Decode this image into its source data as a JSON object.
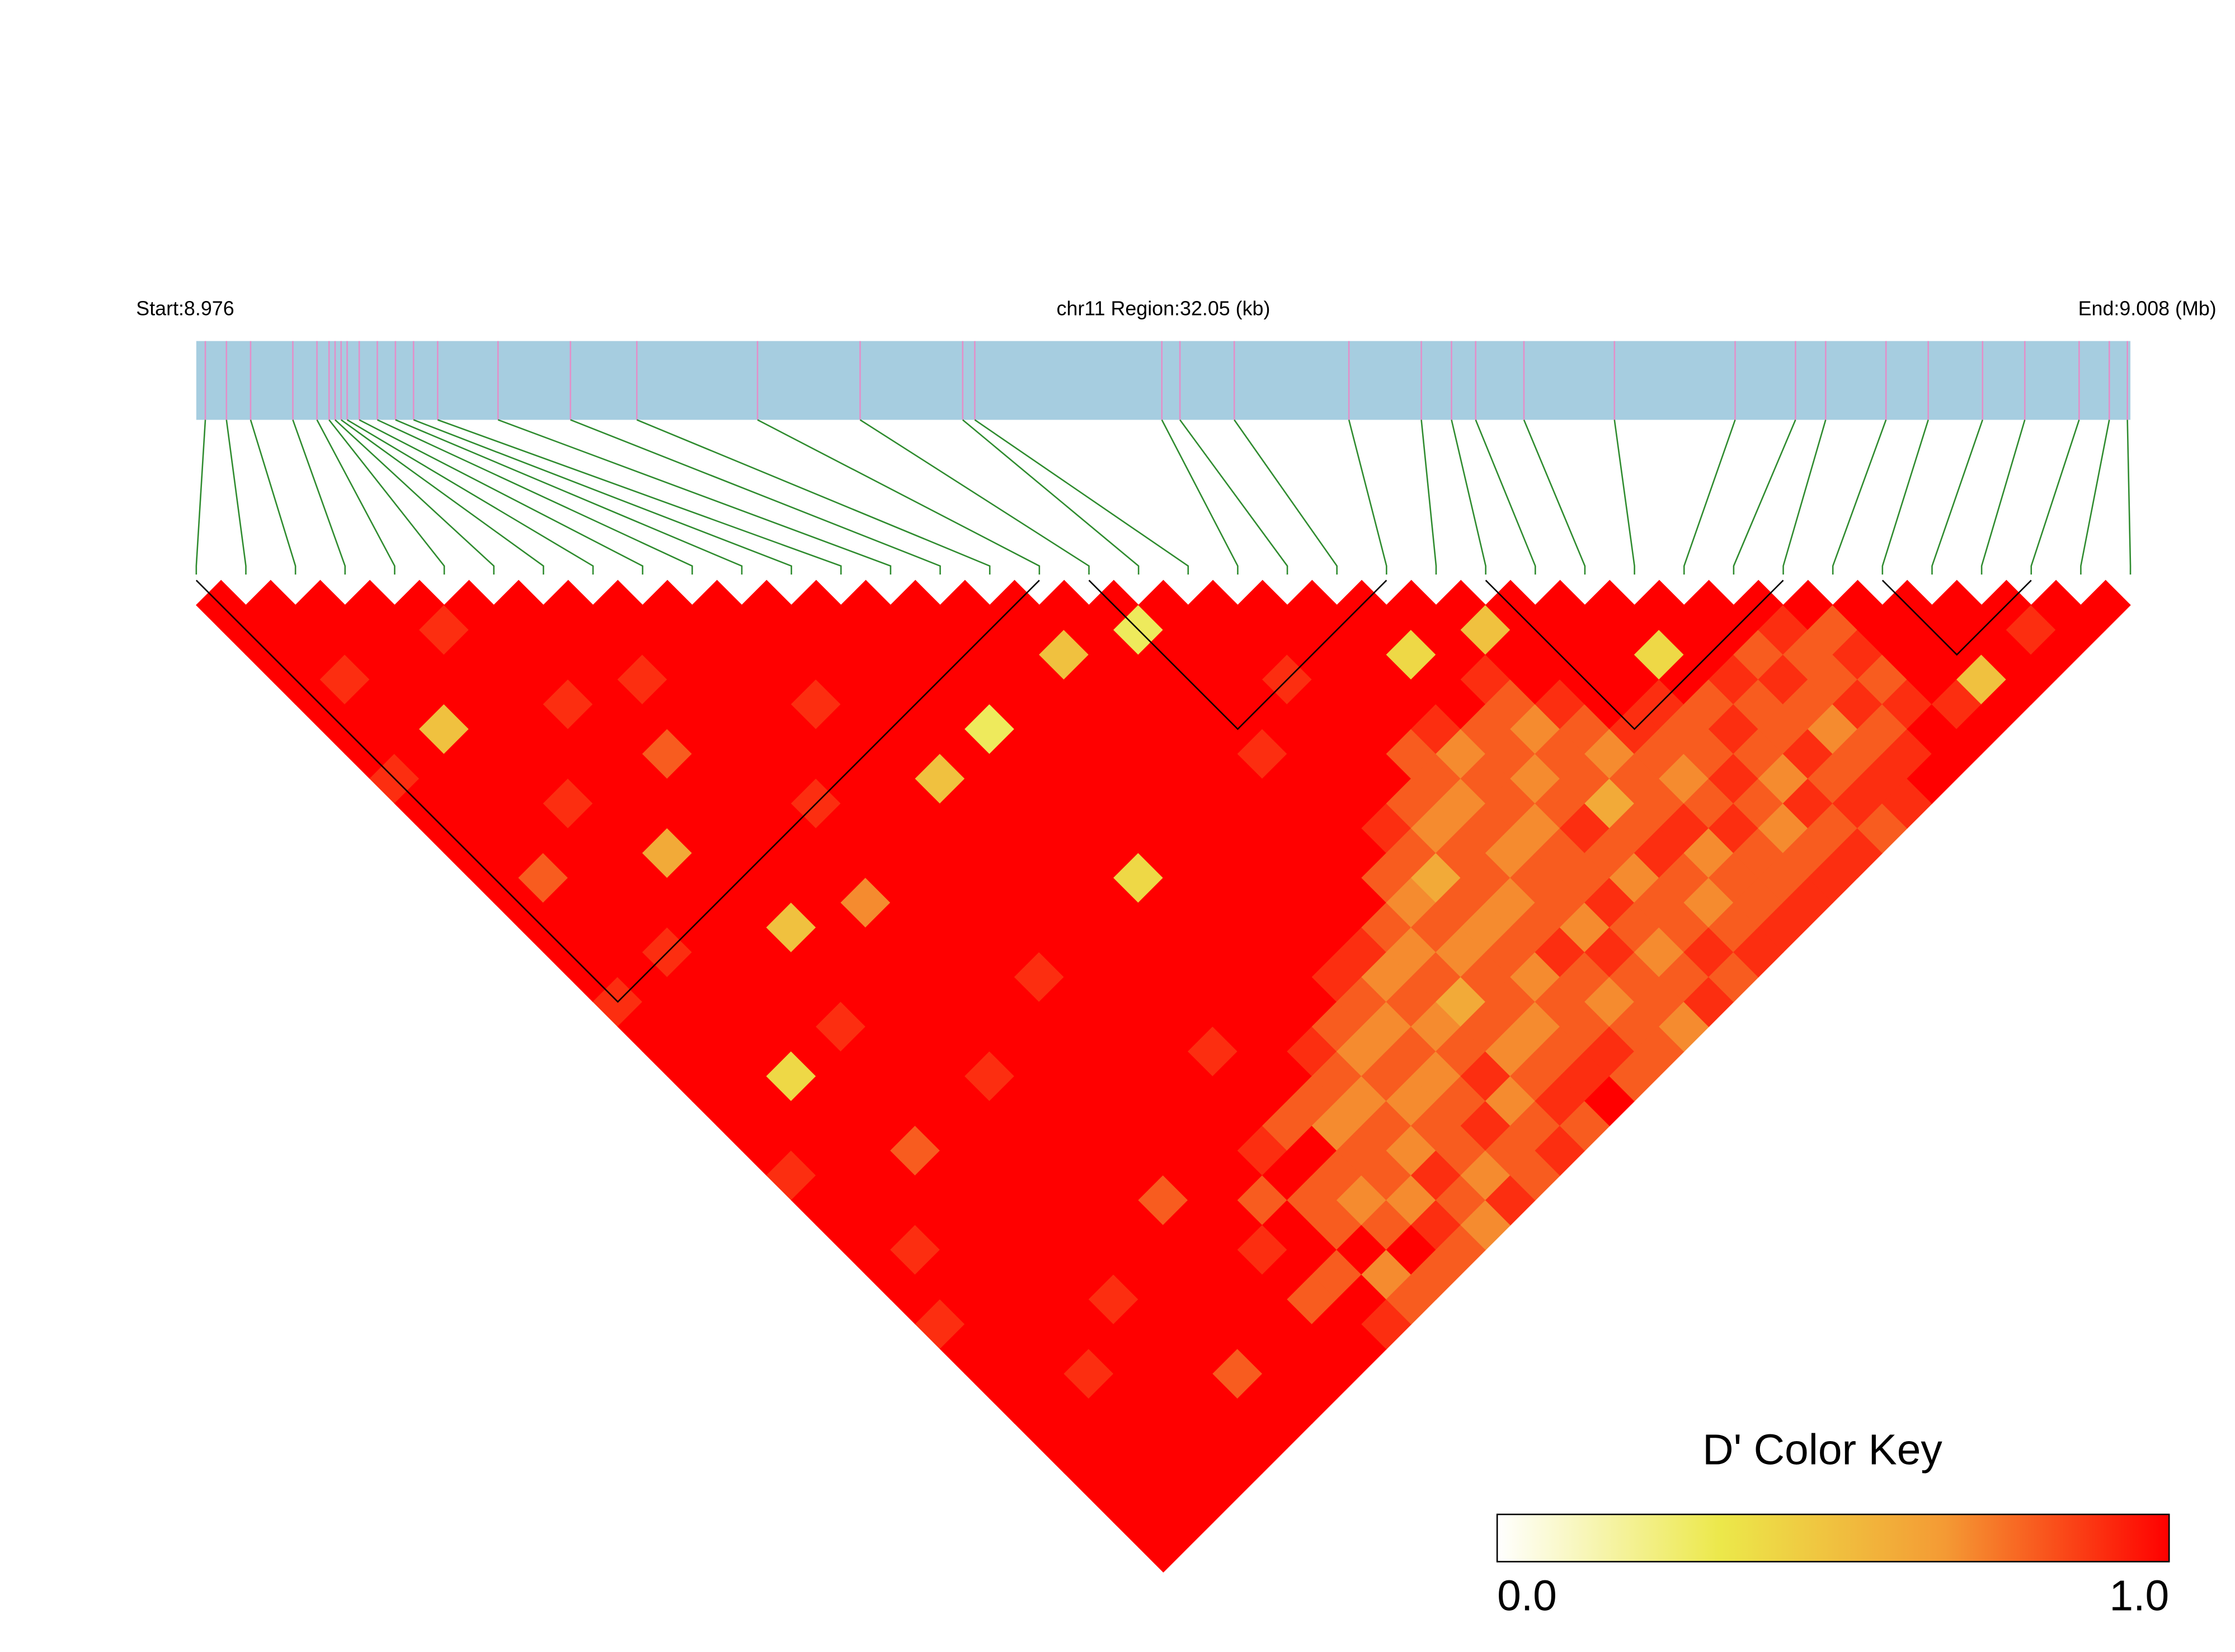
{
  "chart_data": {
    "type": "ld_heatmap",
    "start_label": "Start:8.976",
    "title": "chr11 Region:32.05 (kb)",
    "end_label": "End:9.008 (Mb)",
    "region_kb_lim": [
      0,
      32.05
    ],
    "snp_positions_kb": [
      0.15,
      0.5,
      0.9,
      1.6,
      2.0,
      2.2,
      2.3,
      2.4,
      2.5,
      2.7,
      3.0,
      3.3,
      3.6,
      4.0,
      5.0,
      6.2,
      7.3,
      9.3,
      11.0,
      12.7,
      12.9,
      16.0,
      16.3,
      17.2,
      19.1,
      20.3,
      20.8,
      21.2,
      22.0,
      23.5,
      25.5,
      26.5,
      27.0,
      28.0,
      28.7,
      29.6,
      30.3,
      31.2,
      31.7,
      32.0
    ],
    "bar_color": "#a6cde0",
    "snp_tick_color": "#e38fc9",
    "connector_color": "#2e8b2e",
    "ld": [
      [
        1,
        1,
        1,
        1,
        1,
        1,
        1,
        0.9,
        1,
        1,
        1,
        1,
        1,
        1,
        1,
        1,
        0.9,
        1,
        1,
        1,
        1,
        1,
        1,
        0.9,
        1,
        1,
        1,
        1,
        1,
        0.9,
        1,
        1,
        1,
        1,
        1,
        1,
        1,
        1,
        1
      ],
      [
        1,
        1,
        1,
        0.9,
        1,
        1,
        1,
        1,
        1,
        1,
        1,
        0.8,
        1,
        1,
        1,
        1,
        1,
        1,
        1,
        1,
        1,
        1,
        1,
        1,
        1,
        1,
        0.9,
        1,
        1,
        1,
        1,
        1,
        1,
        1,
        1,
        1,
        1,
        1
      ],
      [
        1,
        1,
        1,
        1,
        1,
        0.5,
        1,
        1,
        1,
        1,
        1,
        1,
        1,
        1,
        0.9,
        1,
        1,
        1,
        1,
        0.4,
        1,
        1,
        1,
        1,
        1,
        1,
        1,
        1,
        1,
        1,
        1,
        0.9,
        1,
        1,
        1,
        1,
        1
      ],
      [
        1,
        1,
        1,
        1,
        1,
        1,
        1,
        1,
        0.9,
        1,
        1,
        1,
        1,
        1,
        1,
        1,
        1,
        1,
        1,
        1,
        1,
        1,
        0.8,
        1,
        1,
        1,
        1,
        1,
        1,
        1,
        1,
        1,
        1,
        1,
        1,
        1
      ],
      [
        1,
        0.9,
        1,
        1,
        1,
        1,
        1,
        1,
        1,
        1,
        0.6,
        1,
        1,
        1,
        1,
        1,
        1,
        0.9,
        1,
        1,
        1,
        1,
        1,
        1,
        1,
        1,
        1,
        1,
        0.9,
        1,
        1,
        1,
        1,
        1,
        1
      ],
      [
        1,
        1,
        1,
        1,
        0.9,
        1,
        1,
        1,
        1,
        1,
        1,
        1,
        1,
        0.5,
        1,
        1,
        1,
        1,
        1,
        1,
        1,
        1,
        1,
        1,
        1,
        1,
        1,
        1,
        1,
        1,
        1,
        0.8,
        1,
        1
      ],
      [
        1,
        1,
        1,
        1,
        1,
        1,
        0.8,
        1,
        1,
        1,
        1,
        1,
        1,
        1,
        1,
        1,
        1,
        1,
        1,
        0.9,
        1,
        1,
        1,
        1,
        1,
        1,
        1,
        1,
        1,
        1,
        1,
        1,
        1
      ],
      [
        1,
        1,
        1,
        0.9,
        1,
        1,
        1,
        1,
        1,
        1,
        1,
        1,
        0.7,
        1,
        1,
        1,
        1,
        1,
        1,
        1,
        1,
        1,
        1,
        1,
        0.8,
        1,
        1,
        1,
        1,
        1,
        1,
        1
      ],
      [
        1,
        1,
        1,
        1,
        1,
        1,
        1,
        1,
        0.9,
        1,
        1,
        1,
        1,
        1,
        1,
        1,
        1,
        1,
        1,
        1,
        1,
        1,
        1,
        1,
        1,
        1,
        0.9,
        1,
        0.8,
        1,
        1
      ],
      [
        1,
        1,
        1,
        1,
        1,
        1,
        1,
        1,
        1,
        1,
        1,
        1,
        1,
        1,
        1,
        0.9,
        1,
        1,
        1,
        1,
        1,
        1,
        1,
        1,
        0.8,
        1,
        1,
        0.8,
        1,
        0.9
      ],
      [
        1,
        1,
        1,
        1,
        0.9,
        1,
        1,
        1,
        1,
        1,
        1,
        1,
        1,
        1,
        1,
        1,
        1,
        1,
        1,
        1,
        1,
        1,
        0.9,
        1,
        0.8,
        0.8,
        1,
        0.7,
        0.8
      ],
      [
        1,
        1,
        1,
        1,
        1,
        1,
        1,
        0.5,
        1,
        1,
        1,
        1,
        1,
        1,
        1,
        1,
        1,
        1,
        0.9,
        1,
        1,
        0.8,
        1,
        0.8,
        0.7,
        0.8,
        1,
        0.8
      ],
      [
        1,
        1,
        1,
        1,
        1,
        1,
        1,
        1,
        1,
        1,
        1,
        1,
        1,
        1,
        1,
        1,
        1,
        1,
        1,
        1,
        0.8,
        0.7,
        0.8,
        0.8,
        0.7,
        0.9,
        0.8
      ],
      [
        1,
        1,
        1,
        1,
        1,
        0.3,
        1,
        1,
        1,
        1,
        1,
        0.4,
        1,
        1,
        1,
        1,
        1,
        1,
        0.9,
        0.8,
        0.7,
        0.8,
        0.7,
        0.9,
        0.8,
        0.7
      ],
      [
        1,
        1,
        1,
        1,
        1,
        1,
        1,
        1,
        1,
        1,
        1,
        1,
        1,
        1,
        1,
        1,
        1,
        0.8,
        0.7,
        0.8,
        0.7,
        0.8,
        0.8,
        0.7,
        0.9
      ],
      [
        1,
        1,
        1,
        1,
        1,
        1,
        1,
        1,
        1,
        1,
        1,
        1,
        1,
        1,
        1,
        0.9,
        0.8,
        0.7,
        0.8,
        0.7,
        0.8,
        0.9,
        0.8,
        0.8
      ],
      [
        1,
        1,
        0.5,
        1,
        1,
        1,
        1,
        1,
        1,
        1,
        1,
        1,
        1,
        1,
        0.9,
        0.7,
        0.8,
        0.7,
        0.8,
        0.9,
        0.7,
        0.8,
        0.9
      ],
      [
        1,
        1,
        1,
        1,
        1,
        1,
        1,
        1,
        1,
        1,
        1,
        1,
        1,
        0.8,
        0.7,
        0.8,
        0.6,
        0.8,
        0.7,
        0.8,
        0.9,
        0.8
      ],
      [
        1,
        0.3,
        1,
        1,
        1,
        1,
        0.9,
        1,
        1,
        1,
        1,
        0.8,
        0.7,
        0.8,
        0.7,
        0.8,
        0.8,
        0.7,
        0.8,
        0.9,
        1
      ],
      [
        1,
        1,
        1,
        1,
        1,
        1,
        1,
        1,
        1,
        0.9,
        0.8,
        0.6,
        0.8,
        0.7,
        0.8,
        0.7,
        0.8,
        0.8,
        0.9,
        0.8
      ],
      [
        1,
        1,
        1,
        0.9,
        1,
        1,
        1,
        1,
        0.8,
        0.7,
        0.8,
        0.8,
        0.7,
        0.8,
        0.9,
        0.8,
        0.7,
        0.8,
        0.8
      ],
      [
        1,
        1,
        1,
        1,
        1,
        1,
        0.8,
        0.8,
        0.7,
        0.8,
        0.7,
        0.8,
        0.8,
        0.7,
        0.9,
        0.8,
        0.8,
        0.7
      ],
      [
        1,
        1,
        1,
        1,
        1,
        0.9,
        0.7,
        0.8,
        0.8,
        0.7,
        0.8,
        0.8,
        0.9,
        0.8,
        0.7,
        0.8,
        0.9
      ],
      [
        1,
        1,
        0.4,
        1,
        1,
        0.8,
        0.8,
        0.7,
        0.8,
        0.9,
        0.8,
        0.7,
        0.8,
        0.8,
        0.9,
        0.8
      ],
      [
        1,
        1,
        1,
        0.9,
        0.8,
        0.7,
        0.8,
        0.8,
        0.6,
        0.8,
        0.9,
        0.8,
        0.7,
        0.8,
        0.9
      ],
      [
        1,
        0.5,
        1,
        1,
        0.9,
        0.8,
        0.7,
        0.8,
        0.8,
        0.9,
        0.7,
        0.8,
        0.8,
        0.9
      ],
      [
        1,
        1,
        1,
        1,
        1,
        0.9,
        0.8,
        0.7,
        0.8,
        0.9,
        0.8,
        0.8,
        0.9
      ],
      [
        1,
        1,
        1,
        1,
        0.9,
        0.8,
        0.8,
        0.9,
        0.8,
        0.7,
        0.8,
        0.9
      ],
      [
        1,
        1,
        0.4,
        1,
        0.8,
        0.9,
        0.8,
        0.7,
        0.9,
        0.8,
        0.9
      ],
      [
        1,
        1,
        1,
        0.9,
        0.8,
        0.8,
        0.9,
        0.8,
        0.9,
        0.8
      ],
      [
        1,
        1,
        0.8,
        0.9,
        0.8,
        0.7,
        0.8,
        0.9,
        0.9
      ],
      [
        1,
        0.9,
        0.8,
        0.8,
        0.9,
        0.8,
        0.9,
        1
      ],
      [
        1,
        0.8,
        0.9,
        0.8,
        0.9,
        1,
        1
      ],
      [
        1,
        1,
        1,
        1,
        0.9,
        1
      ],
      [
        1,
        1,
        1,
        0.5,
        1
      ],
      [
        1,
        1,
        1,
        1
      ],
      [
        1,
        0.9,
        1
      ],
      [
        1,
        1
      ],
      [
        1
      ]
    ],
    "blocks": [
      [
        0,
        17
      ],
      [
        18,
        24
      ],
      [
        26,
        32
      ],
      [
        34,
        37
      ]
    ],
    "colorscale": [
      "#ffffff",
      "#ece84a",
      "#f49a34",
      "#ff0000"
    ],
    "color_key_title": "D' Color Key",
    "color_key_lim": [
      0,
      1
    ],
    "color_key_ticks": [
      {
        "value": 0,
        "label": "0.0"
      },
      {
        "value": 1,
        "label": "1.0"
      }
    ]
  }
}
